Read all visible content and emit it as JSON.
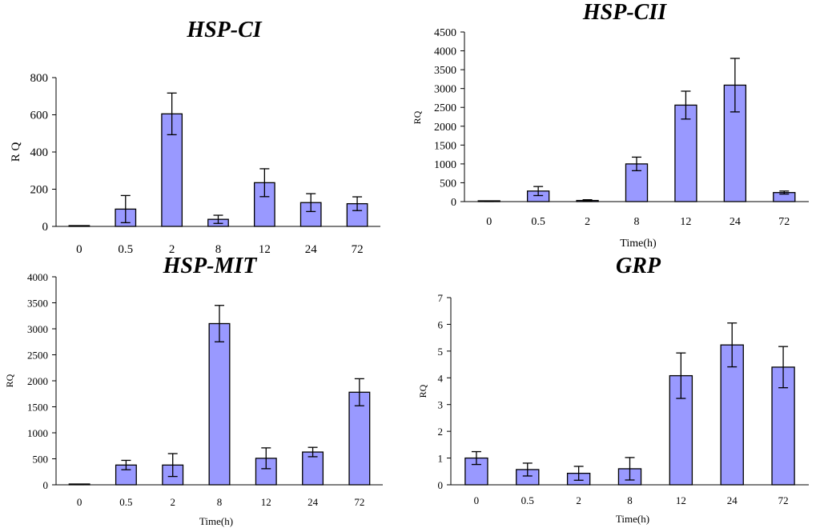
{
  "colors": {
    "bar_fill": "#9999ff",
    "stroke": "#000000"
  },
  "chart_data": [
    {
      "type": "bar",
      "title": "HSP-CI",
      "xlabel": "",
      "ylabel": "R Q",
      "categories": [
        "0",
        "0.5",
        "2",
        "8",
        "12",
        "24",
        "72"
      ],
      "values": [
        2,
        93,
        605,
        38,
        235,
        128,
        122
      ],
      "errors": [
        1,
        73,
        112,
        22,
        75,
        48,
        37
      ],
      "ylim": [
        0,
        800
      ],
      "yticks": [
        0,
        200,
        400,
        600,
        800
      ],
      "ytick_labels": [
        "0",
        "200",
        "400",
        "600",
        "800"
      ]
    },
    {
      "type": "bar",
      "title": "HSP-CII",
      "xlabel": "Time(h)",
      "ylabel": "RQ",
      "categories": [
        "0",
        "0.5",
        "2",
        "8",
        "12",
        "24",
        "72"
      ],
      "values": [
        5,
        280,
        30,
        1000,
        2560,
        3090,
        240
      ],
      "errors": [
        3,
        120,
        20,
        180,
        370,
        710,
        40
      ],
      "ylim": [
        0,
        4500
      ],
      "yticks": [
        0,
        500,
        1000,
        1500,
        2000,
        2500,
        3000,
        3500,
        4000,
        4500
      ],
      "ytick_labels": [
        "0",
        "500",
        "1000",
        "1500",
        "2000",
        "2500",
        "3000",
        "3500",
        "4000",
        "4500"
      ]
    },
    {
      "type": "bar",
      "title": "HSP-MIT",
      "xlabel": "Time(h)",
      "ylabel": "RQ",
      "categories": [
        "0",
        "0.5",
        "2",
        "8",
        "12",
        "24",
        "72"
      ],
      "values": [
        5,
        380,
        380,
        3100,
        510,
        630,
        1780
      ],
      "errors": [
        3,
        90,
        220,
        350,
        200,
        90,
        260
      ],
      "ylim": [
        0,
        4000
      ],
      "yticks": [
        0,
        500,
        1000,
        1500,
        2000,
        2500,
        3000,
        3500,
        4000
      ],
      "ytick_labels": [
        "0",
        "500",
        "1000",
        "1500",
        "2000",
        "2500",
        "3000",
        "3500",
        "4000"
      ]
    },
    {
      "type": "bar",
      "title": "GRP",
      "xlabel": "Time(h)",
      "ylabel": "RQ",
      "categories": [
        "0",
        "0.5",
        "2",
        "8",
        "12",
        "24",
        "72"
      ],
      "values": [
        1.0,
        0.57,
        0.43,
        0.6,
        4.08,
        5.23,
        4.4
      ],
      "errors": [
        0.24,
        0.24,
        0.26,
        0.42,
        0.85,
        0.82,
        0.77
      ],
      "ylim": [
        0,
        7
      ],
      "yticks": [
        0,
        1,
        2,
        3,
        4,
        5,
        6,
        7
      ],
      "ytick_labels": [
        "0",
        "1",
        "2",
        "3",
        "4",
        "5",
        "6",
        "7"
      ]
    }
  ]
}
